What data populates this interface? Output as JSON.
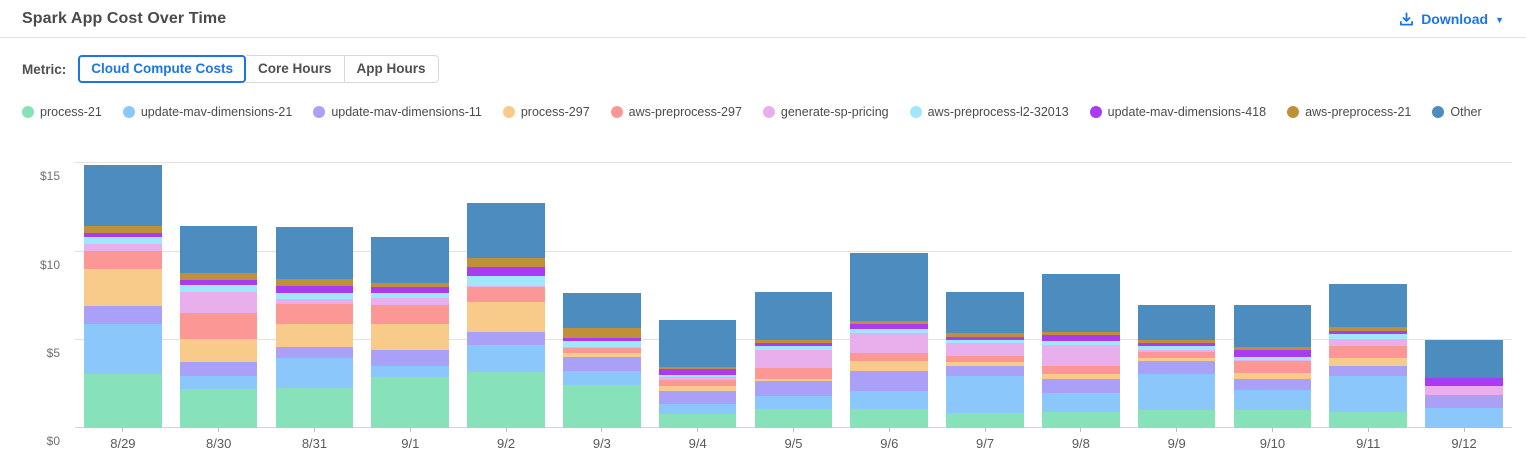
{
  "header": {
    "title": "Spark App Cost Over Time",
    "download": {
      "label": "Download",
      "icon": "download-icon",
      "caret": "▼"
    }
  },
  "metric_selector": {
    "label": "Metric:",
    "options": [
      {
        "label": "Cloud Compute Costs",
        "selected": true
      },
      {
        "label": "Core Hours",
        "selected": false
      },
      {
        "label": "App Hours",
        "selected": false
      }
    ]
  },
  "colors": {
    "accent_blue": "#1b76e4",
    "gridline": "#e2e2e2",
    "axis_line": "#d4d4d4",
    "axis_text": "#6f6f6f",
    "legend_text": "#4b4b4b"
  },
  "chart_data": {
    "type": "bar",
    "stacked": true,
    "title": "Spark App Cost Over Time",
    "xlabel": "",
    "ylabel": "",
    "units": "USD",
    "grid": true,
    "legend_position": "top",
    "ylim": [
      0,
      15.65
    ],
    "y_ticks": [
      {
        "value": 0,
        "label": "$0"
      },
      {
        "value": 5,
        "label": "$5"
      },
      {
        "value": 10,
        "label": "$10"
      },
      {
        "value": 15,
        "label": "$15"
      }
    ],
    "categories": [
      "8/29",
      "8/30",
      "8/31",
      "9/1",
      "9/2",
      "9/3",
      "9/4",
      "9/5",
      "9/6",
      "9/7",
      "9/8",
      "9/9",
      "9/10",
      "9/11",
      "9/12"
    ],
    "series": [
      {
        "name": "process-21",
        "color": "#87e2bc",
        "values": [
          3.05,
          2.2,
          2.25,
          2.87,
          3.16,
          2.44,
          0.81,
          1.09,
          1.09,
          0.86,
          0.9,
          1.0,
          1.0,
          0.9,
          0.0
        ]
      },
      {
        "name": "update-mav-dimensions-21",
        "color": "#8bc7fb",
        "values": [
          2.85,
          0.77,
          1.71,
          0.63,
          1.56,
          0.81,
          0.56,
          0.75,
          1.03,
          2.1,
          1.09,
          2.07,
          1.13,
          2.07,
          1.15
        ]
      },
      {
        "name": "update-mav-dimensions-11",
        "color": "#aba0f7",
        "values": [
          1.0,
          0.75,
          0.64,
          0.94,
          0.7,
          0.79,
          0.75,
          0.81,
          1.13,
          0.53,
          0.79,
          0.75,
          0.66,
          0.53,
          0.75
        ]
      },
      {
        "name": "process-297",
        "color": "#f8cb8b",
        "values": [
          2.1,
          1.31,
          1.28,
          1.45,
          1.7,
          0.24,
          0.28,
          0.13,
          0.56,
          0.26,
          0.28,
          0.13,
          0.34,
          0.45,
          0.0
        ]
      },
      {
        "name": "aws-preprocess-297",
        "color": "#fb9895",
        "values": [
          1.05,
          1.51,
          1.18,
          1.09,
          0.9,
          0.24,
          0.34,
          0.64,
          0.47,
          0.34,
          0.43,
          0.38,
          0.69,
          0.71,
          0.0
        ]
      },
      {
        "name": "generate-sp-pricing",
        "color": "#e9afec",
        "values": [
          0.4,
          1.16,
          0.27,
          0.41,
          0.05,
          0.05,
          0.13,
          1.01,
          1.13,
          0.75,
          1.2,
          0.11,
          0.05,
          0.38,
          0.5
        ]
      },
      {
        "name": "aws-preprocess-l2-32013",
        "color": "#9fe8fb",
        "values": [
          0.4,
          0.43,
          0.33,
          0.25,
          0.55,
          0.36,
          0.13,
          0.23,
          0.19,
          0.15,
          0.24,
          0.19,
          0.15,
          0.28,
          0.0
        ]
      },
      {
        "name": "update-mav-dimensions-418",
        "color": "#a93bf2",
        "values": [
          0.2,
          0.25,
          0.42,
          0.37,
          0.5,
          0.15,
          0.34,
          0.19,
          0.28,
          0.19,
          0.32,
          0.19,
          0.38,
          0.19,
          0.45
        ]
      },
      {
        "name": "aws-preprocess-21",
        "color": "#be9039",
        "values": [
          0.4,
          0.41,
          0.39,
          0.22,
          0.55,
          0.6,
          0.15,
          0.15,
          0.19,
          0.19,
          0.19,
          0.19,
          0.19,
          0.23,
          0.0
        ]
      },
      {
        "name": "Other",
        "color": "#4d8cbe",
        "values": [
          3.45,
          2.69,
          2.95,
          2.6,
          3.1,
          1.99,
          2.63,
          2.72,
          3.85,
          2.35,
          3.29,
          1.95,
          2.4,
          2.41,
          2.15
        ]
      }
    ]
  }
}
